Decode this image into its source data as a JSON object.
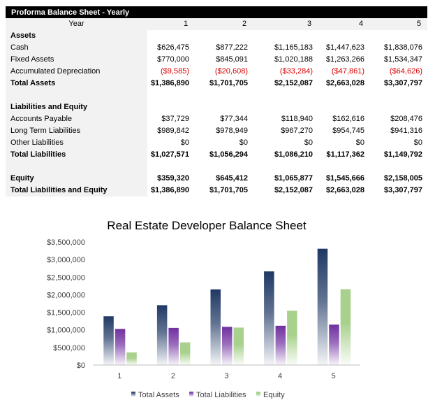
{
  "table": {
    "title": "Proforma Balance Sheet - Yearly",
    "header_label": "Year",
    "years": [
      "1",
      "2",
      "3",
      "4",
      "5"
    ],
    "rows": [
      {
        "label": "Assets",
        "bold": true,
        "values": []
      },
      {
        "label": "Cash",
        "values": [
          "$626,475",
          "$877,222",
          "$1,165,183",
          "$1,447,623",
          "$1,838,076"
        ]
      },
      {
        "label": "Fixed Assets",
        "values": [
          "$770,000",
          "$845,091",
          "$1,020,188",
          "$1,263,266",
          "$1,534,347"
        ]
      },
      {
        "label": "Accumulated Depreciation",
        "negative": true,
        "values": [
          "($9,585)",
          "($20,608)",
          "($33,284)",
          "($47,861)",
          "($64,626)"
        ]
      },
      {
        "label": "Total Assets",
        "bold": true,
        "values": [
          "$1,386,890",
          "$1,701,705",
          "$2,152,087",
          "$2,663,028",
          "$3,307,797"
        ]
      },
      {
        "label": "",
        "values": []
      },
      {
        "label": "Liabilities and Equity",
        "bold": true,
        "values": []
      },
      {
        "label": "Accounts Payable",
        "values": [
          "$37,729",
          "$77,344",
          "$118,940",
          "$162,616",
          "$208,476"
        ]
      },
      {
        "label": "Long Term Liabilities",
        "values": [
          "$989,842",
          "$978,949",
          "$967,270",
          "$954,745",
          "$941,316"
        ]
      },
      {
        "label": "Other Liabilities",
        "values": [
          "$0",
          "$0",
          "$0",
          "$0",
          "$0"
        ]
      },
      {
        "label": "Total Liabilities",
        "bold": true,
        "values": [
          "$1,027,571",
          "$1,056,294",
          "$1,086,210",
          "$1,117,362",
          "$1,149,792"
        ]
      },
      {
        "label": "",
        "values": []
      },
      {
        "label": "Equity",
        "bold": true,
        "values": [
          "$359,320",
          "$645,412",
          "$1,065,877",
          "$1,545,666",
          "$2,158,005"
        ]
      },
      {
        "label": "Total Liabilities and Equity",
        "bold": true,
        "values": [
          "$1,386,890",
          "$1,701,705",
          "$2,152,087",
          "$2,663,028",
          "$3,307,797"
        ]
      }
    ]
  },
  "chart_data": {
    "type": "bar",
    "title": "Real Estate Developer Balance Sheet",
    "categories": [
      "1",
      "2",
      "3",
      "4",
      "5"
    ],
    "ylim": [
      0,
      3500000
    ],
    "yticks": [
      "$0",
      "$500,000",
      "$1,000,000",
      "$1,500,000",
      "$2,000,000",
      "$2,500,000",
      "$3,000,000",
      "$3,500,000"
    ],
    "grid": false,
    "legend": "bottom",
    "series": [
      {
        "name": "Total Assets",
        "color": "#1f3864",
        "values": [
          1386890,
          1701705,
          2152087,
          2663028,
          3307797
        ]
      },
      {
        "name": "Total Liabilities",
        "color": "#7030a0",
        "values": [
          1027571,
          1056294,
          1086210,
          1117362,
          1149792
        ]
      },
      {
        "name": "Equity",
        "color": "#a9d18e",
        "values": [
          359320,
          645412,
          1065877,
          1545666,
          2158005
        ]
      }
    ]
  }
}
